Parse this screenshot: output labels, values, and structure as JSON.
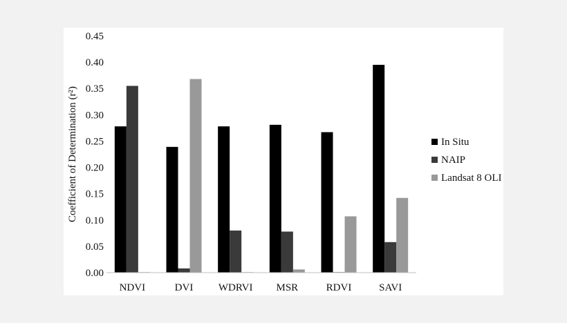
{
  "chart_data": {
    "type": "bar",
    "categories": [
      "NDVI",
      "DVI",
      "WDRVI",
      "MSR",
      "RDVI",
      "SAVI"
    ],
    "series": [
      {
        "name": "In Situ",
        "color": "#000000",
        "values": [
          0.278,
          0.239,
          0.278,
          0.281,
          0.267,
          0.395
        ]
      },
      {
        "name": "NAIP",
        "color": "#3a3a3a",
        "values": [
          0.355,
          0.008,
          0.08,
          0.078,
          0.001,
          0.058
        ]
      },
      {
        "name": "Landsat 8 OLI",
        "color": "#999999",
        "values": [
          0.001,
          0.368,
          0.001,
          0.006,
          0.107,
          0.142
        ]
      }
    ],
    "ylabel": "Coefficient of Determination (r²)",
    "ylim": [
      0,
      0.45
    ],
    "yticks": [
      "0.00",
      "0.05",
      "0.10",
      "0.15",
      "0.20",
      "0.25",
      "0.30",
      "0.35",
      "0.40",
      "0.45"
    ],
    "grid": false,
    "legend_position": "right"
  }
}
